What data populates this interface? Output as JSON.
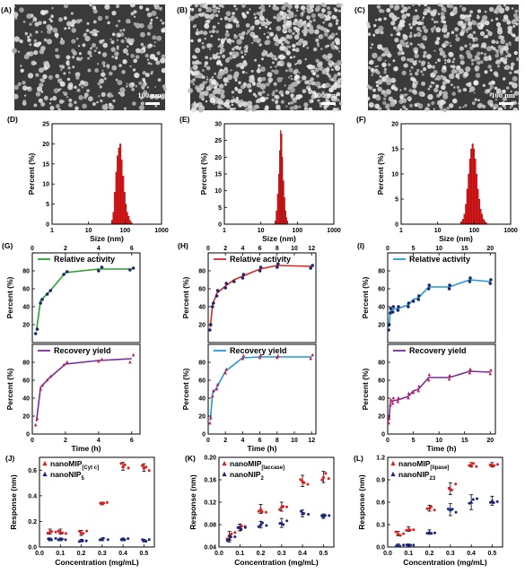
{
  "sem": [
    {
      "label": "(A)",
      "scalebar": "100 nm",
      "seed": 11,
      "density": 0.22
    },
    {
      "label": "(B)",
      "scalebar": "100 nm",
      "seed": 29,
      "density": 0.45
    },
    {
      "label": "(C)",
      "scalebar": "100 nm",
      "seed": 47,
      "density": 0.35
    }
  ],
  "chart_data": [
    {
      "id": "D",
      "type": "bar",
      "title": "(D)",
      "xlabel": "Size (nm)",
      "ylabel": "Percent (%)",
      "xscale": "log",
      "xlim": [
        1,
        1000
      ],
      "ylim": [
        0,
        25
      ],
      "yticks": [
        0,
        5,
        10,
        15,
        20,
        25
      ],
      "xticks": [
        "1",
        "10",
        "100",
        "1000"
      ],
      "x": [
        42,
        46,
        50,
        55,
        60,
        65,
        71,
        78,
        85,
        93,
        101,
        110,
        120,
        131,
        143
      ],
      "values": [
        1,
        3,
        8,
        13,
        17,
        19,
        20,
        16,
        12,
        8,
        5,
        3,
        2,
        1,
        0.5
      ],
      "color": "#e31a1c"
    },
    {
      "id": "E",
      "type": "bar",
      "title": "(E)",
      "xlabel": "Size (nm)",
      "ylabel": "Percent (%)",
      "xscale": "log",
      "xlim": [
        1,
        1000
      ],
      "ylim": [
        0,
        30
      ],
      "yticks": [
        0,
        5,
        10,
        15,
        20,
        25,
        30
      ],
      "xticks": [
        "1",
        "10",
        "100",
        "1000"
      ],
      "x": [
        24,
        26,
        28,
        30,
        32,
        34,
        36,
        38,
        40,
        43,
        46,
        49,
        52
      ],
      "values": [
        1,
        4,
        9,
        15,
        22,
        28,
        27,
        20,
        13,
        8,
        4,
        2,
        1
      ],
      "color": "#e31a1c"
    },
    {
      "id": "F",
      "type": "bar",
      "title": "(F)",
      "xlabel": "Size (nm)",
      "ylabel": "Percent (%)",
      "xscale": "log",
      "xlim": [
        1,
        1000
      ],
      "ylim": [
        0,
        20
      ],
      "yticks": [
        0,
        5,
        10,
        15,
        20
      ],
      "xticks": [
        "1",
        "10",
        "100",
        "1000"
      ],
      "x": [
        42,
        47,
        52,
        57,
        62,
        68,
        74,
        80,
        87,
        95,
        103,
        112,
        122,
        133,
        145,
        158,
        172,
        188,
        205
      ],
      "values": [
        0.5,
        1,
        2,
        4,
        7,
        10,
        13,
        15,
        16,
        15,
        13,
        10,
        7,
        5,
        3,
        2,
        1,
        0.6,
        0.3
      ],
      "color": "#e31a1c"
    },
    {
      "id": "G1",
      "type": "line",
      "title": "(G)",
      "legend": "Relative activity",
      "ylabel": "Percent (%)",
      "xtop": true,
      "xlim": [
        0,
        6.5
      ],
      "xticks": [
        0,
        2,
        4,
        6
      ],
      "ylim": [
        0,
        100
      ],
      "yticks": [
        0,
        20,
        40,
        60,
        80,
        100
      ],
      "color": "#2ca02c",
      "marker": "circle",
      "x": [
        0.25,
        0.5,
        1,
        2,
        4,
        6
      ],
      "y": [
        13,
        47,
        56,
        78,
        82,
        82
      ],
      "pts": [
        [
          0.2,
          10
        ],
        [
          0.3,
          15
        ],
        [
          0.5,
          44
        ],
        [
          0.6,
          48
        ],
        [
          0.9,
          54
        ],
        [
          1.1,
          58
        ],
        [
          1.9,
          76
        ],
        [
          2.1,
          79
        ],
        [
          4.0,
          80
        ],
        [
          4.2,
          84
        ],
        [
          5.9,
          81
        ],
        [
          6.1,
          83
        ]
      ]
    },
    {
      "id": "G2",
      "type": "line",
      "legend": "Recovery yield",
      "ylabel": "Percent (%)",
      "xlabel": "Time (h)",
      "xlim": [
        0,
        6.5
      ],
      "xticks": [
        0,
        2,
        4,
        6
      ],
      "ylim": [
        0,
        100
      ],
      "yticks": [
        0,
        20,
        40,
        60,
        80,
        100
      ],
      "color": "#7b2b9b",
      "marker": "triangle",
      "x": [
        0.25,
        0.5,
        1,
        2,
        4,
        6
      ],
      "y": [
        14,
        52,
        62,
        78,
        82,
        84
      ],
      "pts": [
        [
          0.2,
          10
        ],
        [
          0.3,
          17
        ],
        [
          0.5,
          50
        ],
        [
          0.6,
          54
        ],
        [
          0.9,
          60
        ],
        [
          1.1,
          64
        ],
        [
          1.9,
          77
        ],
        [
          2.1,
          80
        ],
        [
          4.0,
          81
        ],
        [
          4.2,
          83
        ],
        [
          5.9,
          80
        ],
        [
          6.1,
          88
        ]
      ]
    },
    {
      "id": "H1",
      "type": "line",
      "title": "(H)",
      "legend": "Relative activity",
      "ylabel": "Percent (%)",
      "xtop": true,
      "xlim": [
        0,
        12.5
      ],
      "xticks": [
        0,
        2,
        4,
        6,
        8,
        10,
        12
      ],
      "ylim": [
        0,
        100
      ],
      "yticks": [
        0,
        20,
        40,
        60,
        80,
        100
      ],
      "color": "#d62728",
      "marker": "circle",
      "x": [
        0.25,
        0.5,
        1,
        2,
        3,
        4,
        6,
        8,
        12
      ],
      "y": [
        17,
        42,
        55,
        63,
        70,
        74,
        82,
        86,
        85
      ],
      "pts": [
        [
          0.2,
          14
        ],
        [
          0.3,
          20
        ],
        [
          0.5,
          40
        ],
        [
          0.6,
          44
        ],
        [
          1,
          52
        ],
        [
          1.1,
          58
        ],
        [
          2,
          61
        ],
        [
          2.1,
          66
        ],
        [
          3,
          68
        ],
        [
          4,
          72
        ],
        [
          4.1,
          76
        ],
        [
          6,
          80
        ],
        [
          6.1,
          84
        ],
        [
          8,
          84
        ],
        [
          8.1,
          88
        ],
        [
          11.9,
          83
        ],
        [
          12.1,
          86
        ]
      ]
    },
    {
      "id": "H2",
      "type": "line",
      "legend": "Recovery yield",
      "ylabel": "Percent (%)",
      "xlabel": "Time (h)",
      "xlim": [
        0,
        12.5
      ],
      "xticks": [
        0,
        2,
        4,
        6,
        8,
        10,
        12
      ],
      "ylim": [
        0,
        100
      ],
      "yticks": [
        0,
        20,
        40,
        60,
        80,
        100
      ],
      "color": "#1f9bd1",
      "marker": "triangle",
      "x": [
        0.25,
        0.5,
        1,
        2,
        4,
        6,
        8,
        12
      ],
      "y": [
        15,
        45,
        52,
        70,
        85,
        86,
        86,
        86
      ],
      "pts": [
        [
          0.2,
          12
        ],
        [
          0.3,
          18
        ],
        [
          0.5,
          42
        ],
        [
          0.6,
          48
        ],
        [
          1,
          50
        ],
        [
          1.1,
          55
        ],
        [
          2,
          68
        ],
        [
          2.1,
          72
        ],
        [
          4,
          84
        ],
        [
          4.1,
          87
        ],
        [
          6,
          85
        ],
        [
          6.1,
          88
        ],
        [
          8,
          85
        ],
        [
          8.1,
          87
        ],
        [
          11.9,
          84
        ],
        [
          12.1,
          88
        ]
      ]
    },
    {
      "id": "I1",
      "type": "line",
      "title": "(I)",
      "legend": "Relative activity",
      "ylabel": "Percent (%)",
      "xtop": true,
      "xlim": [
        0,
        21
      ],
      "xticks": [
        0,
        5,
        10,
        15,
        20
      ],
      "ylim": [
        0,
        100
      ],
      "yticks": [
        0,
        20,
        40,
        60,
        80,
        100
      ],
      "color": "#1f9bd1",
      "marker": "circle",
      "x": [
        0.25,
        0.5,
        1,
        2,
        4,
        5,
        6,
        8,
        12,
        16,
        20
      ],
      "y": [
        17,
        35,
        37,
        38,
        42,
        48,
        50,
        62,
        62,
        70,
        68
      ],
      "pts": [
        [
          0.2,
          14
        ],
        [
          0.3,
          20
        ],
        [
          0.5,
          33
        ],
        [
          0.6,
          38
        ],
        [
          1,
          34
        ],
        [
          1.1,
          40
        ],
        [
          2,
          36
        ],
        [
          2.1,
          40
        ],
        [
          4,
          40
        ],
        [
          4.1,
          44
        ],
        [
          5,
          46
        ],
        [
          6,
          48
        ],
        [
          6.1,
          52
        ],
        [
          8,
          60
        ],
        [
          8.1,
          64
        ],
        [
          12,
          60
        ],
        [
          12.1,
          64
        ],
        [
          16,
          68
        ],
        [
          16.1,
          72
        ],
        [
          20,
          66
        ],
        [
          20.1,
          70
        ]
      ]
    },
    {
      "id": "I2",
      "type": "line",
      "legend": "Recovery yield",
      "ylabel": "Percent (%)",
      "xlabel": "Time (h)",
      "xlim": [
        0,
        21
      ],
      "xticks": [
        0,
        5,
        10,
        15,
        20
      ],
      "ylim": [
        0,
        100
      ],
      "yticks": [
        0,
        20,
        40,
        60,
        80,
        100
      ],
      "color": "#7b2b9b",
      "marker": "triangle",
      "x": [
        0.25,
        0.5,
        1,
        2,
        4,
        5,
        6,
        8,
        12,
        16,
        20
      ],
      "y": [
        15,
        35,
        37,
        38,
        42,
        48,
        50,
        63,
        63,
        70,
        69
      ],
      "pts": [
        [
          0.2,
          12
        ],
        [
          0.3,
          18
        ],
        [
          0.5,
          32
        ],
        [
          0.6,
          38
        ],
        [
          1,
          34
        ],
        [
          1.1,
          40
        ],
        [
          2,
          36
        ],
        [
          2.1,
          40
        ],
        [
          4,
          40
        ],
        [
          4.1,
          45
        ],
        [
          5,
          46
        ],
        [
          6,
          48
        ],
        [
          6.1,
          53
        ],
        [
          8,
          60
        ],
        [
          8.1,
          66
        ],
        [
          12,
          61
        ],
        [
          12.1,
          65
        ],
        [
          16,
          68
        ],
        [
          16.1,
          72
        ],
        [
          20,
          67
        ],
        [
          20.1,
          71
        ]
      ]
    },
    {
      "id": "J",
      "type": "scatter",
      "title": "(J)",
      "xlabel": "Concentration (mg/mL)",
      "ylabel": "Response (nm)",
      "xlim": [
        0,
        0.55
      ],
      "xticks": [
        0,
        0.1,
        0.2,
        0.3,
        0.4,
        0.5
      ],
      "ylim": [
        0,
        0.7
      ],
      "yticks": [
        0,
        0.2,
        0.4,
        0.6
      ],
      "ytickfmt": 1,
      "series": [
        {
          "name": "nanoMIP",
          "sub": "[Cyt c]",
          "color": "#e31a1c",
          "marker": "triangle",
          "x": [
            0.05,
            0.1,
            0.2,
            0.3,
            0.4,
            0.5
          ],
          "y": [
            0.12,
            0.12,
            0.11,
            0.34,
            0.63,
            0.62
          ],
          "err": [
            0.02,
            0.02,
            0.02,
            0.01,
            0.03,
            0.03
          ]
        },
        {
          "name": "nanoNIP",
          "sub": "5",
          "color": "#1a237e",
          "marker": "triangle",
          "x": [
            0.05,
            0.1,
            0.2,
            0.3,
            0.4,
            0.5
          ],
          "y": [
            0.06,
            0.06,
            0.05,
            0.06,
            0.06,
            0.05
          ],
          "err": [
            0.01,
            0.01,
            0.01,
            0.01,
            0.01,
            0.01
          ]
        }
      ]
    },
    {
      "id": "K",
      "type": "scatter",
      "title": "(K)",
      "xlabel": "Concentration (mg/mL)",
      "ylabel": "Response (nm)",
      "xlim": [
        0,
        0.55
      ],
      "xticks": [
        0,
        0.1,
        0.2,
        0.3,
        0.4,
        0.5
      ],
      "ylim": [
        0.04,
        0.2
      ],
      "yticks": [
        0.04,
        0.08,
        0.12,
        0.16,
        0.2
      ],
      "ytickfmt": 2,
      "series": [
        {
          "name": "nanoMIP",
          "sub": "[laccase]",
          "color": "#e31a1c",
          "marker": "triangle",
          "x": [
            0.05,
            0.1,
            0.2,
            0.3,
            0.4,
            0.5
          ],
          "y": [
            0.06,
            0.075,
            0.108,
            0.112,
            0.158,
            0.165
          ],
          "err": [
            0.008,
            0.006,
            0.008,
            0.008,
            0.01,
            0.01
          ]
        },
        {
          "name": "nanoNIP",
          "sub": "2",
          "color": "#1a237e",
          "marker": "triangle",
          "x": [
            0.05,
            0.1,
            0.2,
            0.3,
            0.4,
            0.5
          ],
          "y": [
            0.055,
            0.075,
            0.08,
            0.083,
            0.1,
            0.095
          ],
          "err": [
            0.006,
            0.006,
            0.006,
            0.008,
            0.006,
            0.004
          ]
        }
      ]
    },
    {
      "id": "L",
      "type": "scatter",
      "title": "(L)",
      "xlabel": "Concentration (mg/mL)",
      "ylabel": "Response (nm)",
      "xlim": [
        0,
        0.55
      ],
      "xticks": [
        0,
        0.1,
        0.2,
        0.3,
        0.4,
        0.5
      ],
      "ylim": [
        0,
        1.2
      ],
      "yticks": [
        0,
        0.3,
        0.6,
        0.9,
        1.2
      ],
      "ytickfmt": 1,
      "series": [
        {
          "name": "nanoMIP",
          "sub": "[lipase]",
          "color": "#e31a1c",
          "marker": "triangle",
          "x": [
            0.05,
            0.1,
            0.2,
            0.3,
            0.4,
            0.5
          ],
          "y": [
            0.18,
            0.24,
            0.52,
            0.78,
            1.1,
            1.1
          ],
          "err": [
            0.03,
            0.03,
            0.04,
            0.08,
            0.03,
            0.03
          ]
        },
        {
          "name": "nanoNIP",
          "sub": "23",
          "color": "#1a237e",
          "marker": "triangle",
          "x": [
            0.05,
            0.1,
            0.2,
            0.3,
            0.4,
            0.5
          ],
          "y": [
            0.02,
            0.02,
            0.2,
            0.5,
            0.6,
            0.62
          ],
          "err": [
            0.02,
            0.02,
            0.03,
            0.08,
            0.1,
            0.06
          ]
        }
      ]
    }
  ]
}
